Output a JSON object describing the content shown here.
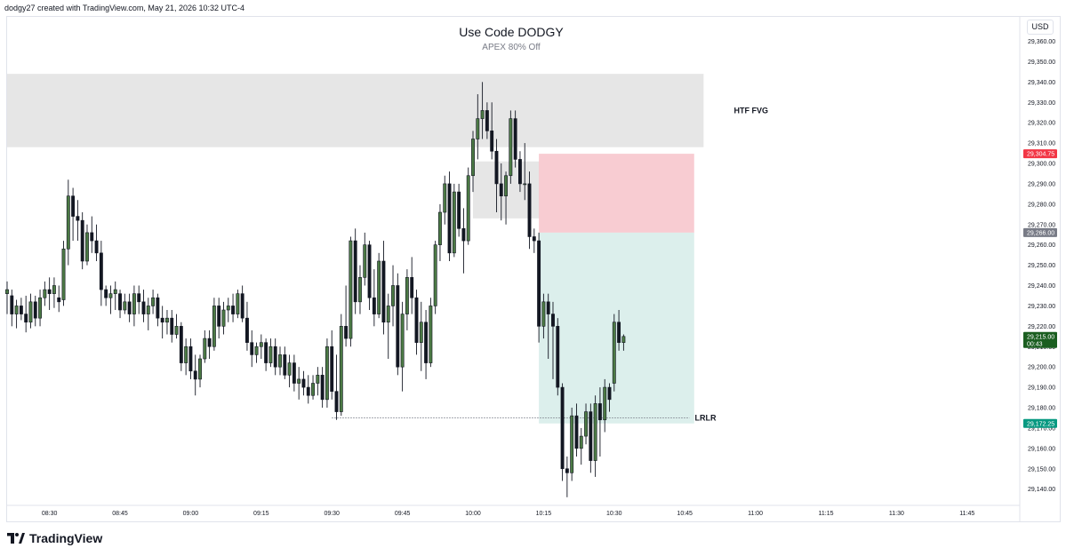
{
  "header": {
    "note": "dodgy27 created with TradingView.com, May 21, 2026 10:32 UTC-4"
  },
  "chart_data": {
    "type": "candlestick",
    "title": "Use Code DODGY",
    "subtitle": "APEX 80% Off",
    "currency": "USD",
    "y_range": [
      29132,
      29372
    ],
    "y_ticks": [
      29140,
      29150,
      29160,
      29170,
      29180,
      29190,
      29200,
      29210,
      29220,
      29230,
      29240,
      29250,
      29260,
      29270,
      29280,
      29290,
      29300,
      29310,
      29320,
      29330,
      29340,
      29350,
      29360
    ],
    "y_tick_labels": [
      "29,140.00",
      "29,150.00",
      "29,160.00",
      "29,170.00",
      "29,180.00",
      "29,190.00",
      "29,200.00",
      "29,210.00",
      "29,220.00",
      "29,230.00",
      "29,240.00",
      "29,250.00",
      "29,260.00",
      "29,270.00",
      "29,280.00",
      "29,290.00",
      "29,300.00",
      "29,310.00",
      "29,320.00",
      "29,330.00",
      "29,340.00",
      "29,350.00",
      "29,360.00"
    ],
    "x_ticks": [
      {
        "time": "08:30",
        "minute": 0
      },
      {
        "time": "08:45",
        "minute": 15
      },
      {
        "time": "09:00",
        "minute": 30
      },
      {
        "time": "09:15",
        "minute": 45
      },
      {
        "time": "09:30",
        "minute": 60
      },
      {
        "time": "09:45",
        "minute": 75
      },
      {
        "time": "10:00",
        "minute": 90
      },
      {
        "time": "10:15",
        "minute": 105
      },
      {
        "time": "10:30",
        "minute": 120
      },
      {
        "time": "10:45",
        "minute": 135
      },
      {
        "time": "11:00",
        "minute": 150
      },
      {
        "time": "11:15",
        "minute": 165
      },
      {
        "time": "11:30",
        "minute": 180
      },
      {
        "time": "11:45",
        "minute": 195
      }
    ],
    "x_range_minutes": [
      -9,
      206
    ],
    "candle_interval_minutes": 1,
    "candles": [
      {
        "t": -9,
        "o": 29236,
        "h": 29242,
        "l": 29226,
        "c": 29238
      },
      {
        "t": -8,
        "o": 29235,
        "h": 29238,
        "l": 29220,
        "c": 29226
      },
      {
        "t": -7,
        "o": 29226,
        "h": 29233,
        "l": 29219,
        "c": 29230
      },
      {
        "t": -6,
        "o": 29230,
        "h": 29234,
        "l": 29223,
        "c": 29226
      },
      {
        "t": -5,
        "o": 29226,
        "h": 29235,
        "l": 29217,
        "c": 29222
      },
      {
        "t": -4,
        "o": 29222,
        "h": 29236,
        "l": 29219,
        "c": 29232
      },
      {
        "t": -3,
        "o": 29232,
        "h": 29235,
        "l": 29220,
        "c": 29224
      },
      {
        "t": -2,
        "o": 29224,
        "h": 29238,
        "l": 29220,
        "c": 29234
      },
      {
        "t": -1,
        "o": 29234,
        "h": 29242,
        "l": 29230,
        "c": 29238
      },
      {
        "t": 0,
        "o": 29238,
        "h": 29244,
        "l": 29228,
        "c": 29236
      },
      {
        "t": 1,
        "o": 29236,
        "h": 29244,
        "l": 29229,
        "c": 29240
      },
      {
        "t": 2,
        "o": 29234,
        "h": 29240,
        "l": 29227,
        "c": 29232
      },
      {
        "t": 3,
        "o": 29233,
        "h": 29262,
        "l": 29230,
        "c": 29258
      },
      {
        "t": 4,
        "o": 29258,
        "h": 29292,
        "l": 29250,
        "c": 29284
      },
      {
        "t": 5,
        "o": 29284,
        "h": 29288,
        "l": 29262,
        "c": 29274
      },
      {
        "t": 6,
        "o": 29274,
        "h": 29282,
        "l": 29262,
        "c": 29272
      },
      {
        "t": 7,
        "o": 29272,
        "h": 29276,
        "l": 29248,
        "c": 29252
      },
      {
        "t": 8,
        "o": 29252,
        "h": 29270,
        "l": 29250,
        "c": 29266
      },
      {
        "t": 9,
        "o": 29266,
        "h": 29274,
        "l": 29256,
        "c": 29262
      },
      {
        "t": 10,
        "o": 29262,
        "h": 29270,
        "l": 29252,
        "c": 29256
      },
      {
        "t": 11,
        "o": 29256,
        "h": 29262,
        "l": 29230,
        "c": 29238
      },
      {
        "t": 12,
        "o": 29238,
        "h": 29240,
        "l": 29230,
        "c": 29234
      },
      {
        "t": 13,
        "o": 29234,
        "h": 29240,
        "l": 29226,
        "c": 29236
      },
      {
        "t": 14,
        "o": 29236,
        "h": 29242,
        "l": 29228,
        "c": 29238
      },
      {
        "t": 15,
        "o": 29236,
        "h": 29238,
        "l": 29224,
        "c": 29228
      },
      {
        "t": 16,
        "o": 29228,
        "h": 29236,
        "l": 29226,
        "c": 29232
      },
      {
        "t": 17,
        "o": 29232,
        "h": 29236,
        "l": 29222,
        "c": 29226
      },
      {
        "t": 18,
        "o": 29226,
        "h": 29240,
        "l": 29220,
        "c": 29236
      },
      {
        "t": 19,
        "o": 29236,
        "h": 29240,
        "l": 29226,
        "c": 29232
      },
      {
        "t": 20,
        "o": 29232,
        "h": 29238,
        "l": 29222,
        "c": 29226
      },
      {
        "t": 21,
        "o": 29226,
        "h": 29234,
        "l": 29218,
        "c": 29230
      },
      {
        "t": 22,
        "o": 29230,
        "h": 29238,
        "l": 29226,
        "c": 29234
      },
      {
        "t": 23,
        "o": 29234,
        "h": 29236,
        "l": 29220,
        "c": 29224
      },
      {
        "t": 24,
        "o": 29224,
        "h": 29230,
        "l": 29214,
        "c": 29222
      },
      {
        "t": 25,
        "o": 29222,
        "h": 29228,
        "l": 29216,
        "c": 29224
      },
      {
        "t": 26,
        "o": 29224,
        "h": 29228,
        "l": 29212,
        "c": 29216
      },
      {
        "t": 27,
        "o": 29216,
        "h": 29226,
        "l": 29214,
        "c": 29220
      },
      {
        "t": 28,
        "o": 29220,
        "h": 29222,
        "l": 29198,
        "c": 29202
      },
      {
        "t": 29,
        "o": 29202,
        "h": 29214,
        "l": 29196,
        "c": 29210
      },
      {
        "t": 30,
        "o": 29210,
        "h": 29214,
        "l": 29194,
        "c": 29198
      },
      {
        "t": 31,
        "o": 29198,
        "h": 29206,
        "l": 29186,
        "c": 29194
      },
      {
        "t": 32,
        "o": 29194,
        "h": 29206,
        "l": 29190,
        "c": 29204
      },
      {
        "t": 33,
        "o": 29204,
        "h": 29218,
        "l": 29202,
        "c": 29214
      },
      {
        "t": 34,
        "o": 29214,
        "h": 29218,
        "l": 29204,
        "c": 29210
      },
      {
        "t": 35,
        "o": 29210,
        "h": 29234,
        "l": 29208,
        "c": 29230
      },
      {
        "t": 36,
        "o": 29230,
        "h": 29234,
        "l": 29214,
        "c": 29220
      },
      {
        "t": 37,
        "o": 29220,
        "h": 29232,
        "l": 29216,
        "c": 29228
      },
      {
        "t": 38,
        "o": 29228,
        "h": 29234,
        "l": 29222,
        "c": 29230
      },
      {
        "t": 39,
        "o": 29230,
        "h": 29236,
        "l": 29222,
        "c": 29226
      },
      {
        "t": 40,
        "o": 29226,
        "h": 29238,
        "l": 29224,
        "c": 29236
      },
      {
        "t": 41,
        "o": 29236,
        "h": 29240,
        "l": 29222,
        "c": 29224
      },
      {
        "t": 42,
        "o": 29224,
        "h": 29232,
        "l": 29208,
        "c": 29212
      },
      {
        "t": 43,
        "o": 29212,
        "h": 29218,
        "l": 29200,
        "c": 29206
      },
      {
        "t": 44,
        "o": 29206,
        "h": 29212,
        "l": 29202,
        "c": 29210
      },
      {
        "t": 45,
        "o": 29210,
        "h": 29216,
        "l": 29204,
        "c": 29212
      },
      {
        "t": 46,
        "o": 29212,
        "h": 29214,
        "l": 29198,
        "c": 29202
      },
      {
        "t": 47,
        "o": 29202,
        "h": 29214,
        "l": 29200,
        "c": 29210
      },
      {
        "t": 48,
        "o": 29210,
        "h": 29214,
        "l": 29196,
        "c": 29200
      },
      {
        "t": 49,
        "o": 29200,
        "h": 29210,
        "l": 29196,
        "c": 29206
      },
      {
        "t": 50,
        "o": 29206,
        "h": 29210,
        "l": 29194,
        "c": 29196
      },
      {
        "t": 51,
        "o": 29196,
        "h": 29206,
        "l": 29190,
        "c": 29202
      },
      {
        "t": 52,
        "o": 29202,
        "h": 29206,
        "l": 29188,
        "c": 29192
      },
      {
        "t": 53,
        "o": 29192,
        "h": 29200,
        "l": 29184,
        "c": 29194
      },
      {
        "t": 54,
        "o": 29194,
        "h": 29198,
        "l": 29186,
        "c": 29190
      },
      {
        "t": 55,
        "o": 29190,
        "h": 29196,
        "l": 29182,
        "c": 29186
      },
      {
        "t": 56,
        "o": 29186,
        "h": 29196,
        "l": 29184,
        "c": 29192
      },
      {
        "t": 57,
        "o": 29192,
        "h": 29200,
        "l": 29186,
        "c": 29196
      },
      {
        "t": 58,
        "o": 29196,
        "h": 29200,
        "l": 29180,
        "c": 29184
      },
      {
        "t": 59,
        "o": 29184,
        "h": 29214,
        "l": 29180,
        "c": 29210
      },
      {
        "t": 60,
        "o": 29210,
        "h": 29218,
        "l": 29184,
        "c": 29188
      },
      {
        "t": 61,
        "o": 29188,
        "h": 29206,
        "l": 29174,
        "c": 29178
      },
      {
        "t": 62,
        "o": 29178,
        "h": 29226,
        "l": 29176,
        "c": 29220
      },
      {
        "t": 63,
        "o": 29220,
        "h": 29240,
        "l": 29210,
        "c": 29214
      },
      {
        "t": 64,
        "o": 29214,
        "h": 29264,
        "l": 29210,
        "c": 29262
      },
      {
        "t": 65,
        "o": 29262,
        "h": 29268,
        "l": 29226,
        "c": 29232
      },
      {
        "t": 66,
        "o": 29232,
        "h": 29250,
        "l": 29226,
        "c": 29244
      },
      {
        "t": 67,
        "o": 29244,
        "h": 29266,
        "l": 29240,
        "c": 29260
      },
      {
        "t": 68,
        "o": 29260,
        "h": 29262,
        "l": 29228,
        "c": 29234
      },
      {
        "t": 69,
        "o": 29234,
        "h": 29248,
        "l": 29220,
        "c": 29226
      },
      {
        "t": 70,
        "o": 29226,
        "h": 29256,
        "l": 29224,
        "c": 29252
      },
      {
        "t": 71,
        "o": 29252,
        "h": 29262,
        "l": 29216,
        "c": 29222
      },
      {
        "t": 72,
        "o": 29222,
        "h": 29236,
        "l": 29204,
        "c": 29230
      },
      {
        "t": 73,
        "o": 29230,
        "h": 29250,
        "l": 29220,
        "c": 29240
      },
      {
        "t": 74,
        "o": 29240,
        "h": 29246,
        "l": 29196,
        "c": 29200
      },
      {
        "t": 75,
        "o": 29200,
        "h": 29232,
        "l": 29188,
        "c": 29226
      },
      {
        "t": 76,
        "o": 29226,
        "h": 29248,
        "l": 29218,
        "c": 29244
      },
      {
        "t": 77,
        "o": 29244,
        "h": 29254,
        "l": 29226,
        "c": 29234
      },
      {
        "t": 78,
        "o": 29234,
        "h": 29238,
        "l": 29206,
        "c": 29212
      },
      {
        "t": 79,
        "o": 29212,
        "h": 29232,
        "l": 29198,
        "c": 29222
      },
      {
        "t": 80,
        "o": 29222,
        "h": 29228,
        "l": 29194,
        "c": 29202
      },
      {
        "t": 81,
        "o": 29202,
        "h": 29234,
        "l": 29200,
        "c": 29230
      },
      {
        "t": 82,
        "o": 29230,
        "h": 29262,
        "l": 29226,
        "c": 29260
      },
      {
        "t": 83,
        "o": 29260,
        "h": 29280,
        "l": 29252,
        "c": 29276
      },
      {
        "t": 84,
        "o": 29276,
        "h": 29294,
        "l": 29270,
        "c": 29290
      },
      {
        "t": 85,
        "o": 29290,
        "h": 29296,
        "l": 29252,
        "c": 29256
      },
      {
        "t": 86,
        "o": 29256,
        "h": 29290,
        "l": 29254,
        "c": 29286
      },
      {
        "t": 87,
        "o": 29286,
        "h": 29290,
        "l": 29264,
        "c": 29268
      },
      {
        "t": 88,
        "o": 29268,
        "h": 29278,
        "l": 29246,
        "c": 29262
      },
      {
        "t": 89,
        "o": 29262,
        "h": 29298,
        "l": 29260,
        "c": 29294
      },
      {
        "t": 90,
        "o": 29294,
        "h": 29316,
        "l": 29286,
        "c": 29312
      },
      {
        "t": 91,
        "o": 29312,
        "h": 29334,
        "l": 29302,
        "c": 29322
      },
      {
        "t": 92,
        "o": 29322,
        "h": 29340,
        "l": 29312,
        "c": 29326
      },
      {
        "t": 93,
        "o": 29326,
        "h": 29330,
        "l": 29312,
        "c": 29316
      },
      {
        "t": 94,
        "o": 29316,
        "h": 29330,
        "l": 29302,
        "c": 29306
      },
      {
        "t": 95,
        "o": 29306,
        "h": 29312,
        "l": 29276,
        "c": 29290
      },
      {
        "t": 96,
        "o": 29290,
        "h": 29300,
        "l": 29272,
        "c": 29284
      },
      {
        "t": 97,
        "o": 29284,
        "h": 29296,
        "l": 29270,
        "c": 29294
      },
      {
        "t": 98,
        "o": 29294,
        "h": 29326,
        "l": 29290,
        "c": 29322
      },
      {
        "t": 99,
        "o": 29322,
        "h": 29326,
        "l": 29298,
        "c": 29302
      },
      {
        "t": 100,
        "o": 29302,
        "h": 29306,
        "l": 29286,
        "c": 29290
      },
      {
        "t": 101,
        "o": 29290,
        "h": 29310,
        "l": 29282,
        "c": 29290
      },
      {
        "t": 102,
        "o": 29290,
        "h": 29296,
        "l": 29258,
        "c": 29264
      },
      {
        "t": 103,
        "o": 29264,
        "h": 29268,
        "l": 29256,
        "c": 29262
      },
      {
        "t": 104,
        "o": 29262,
        "h": 29266,
        "l": 29212,
        "c": 29220
      },
      {
        "t": 105,
        "o": 29220,
        "h": 29236,
        "l": 29214,
        "c": 29232
      },
      {
        "t": 106,
        "o": 29232,
        "h": 29236,
        "l": 29204,
        "c": 29226
      },
      {
        "t": 107,
        "o": 29226,
        "h": 29232,
        "l": 29194,
        "c": 29220
      },
      {
        "t": 108,
        "o": 29220,
        "h": 29224,
        "l": 29186,
        "c": 29190
      },
      {
        "t": 109,
        "o": 29190,
        "h": 29192,
        "l": 29144,
        "c": 29150
      },
      {
        "t": 110,
        "o": 29150,
        "h": 29156,
        "l": 29136,
        "c": 29148
      },
      {
        "t": 111,
        "o": 29148,
        "h": 29180,
        "l": 29144,
        "c": 29176
      },
      {
        "t": 112,
        "o": 29176,
        "h": 29182,
        "l": 29156,
        "c": 29160
      },
      {
        "t": 113,
        "o": 29160,
        "h": 29170,
        "l": 29152,
        "c": 29166
      },
      {
        "t": 114,
        "o": 29166,
        "h": 29182,
        "l": 29162,
        "c": 29178
      },
      {
        "t": 115,
        "o": 29178,
        "h": 29182,
        "l": 29148,
        "c": 29154
      },
      {
        "t": 116,
        "o": 29154,
        "h": 29186,
        "l": 29146,
        "c": 29182
      },
      {
        "t": 117,
        "o": 29182,
        "h": 29190,
        "l": 29156,
        "c": 29174
      },
      {
        "t": 118,
        "o": 29174,
        "h": 29194,
        "l": 29168,
        "c": 29190
      },
      {
        "t": 119,
        "o": 29190,
        "h": 29192,
        "l": 29178,
        "c": 29184
      },
      {
        "t": 120,
        "o": 29192,
        "h": 29226,
        "l": 29188,
        "c": 29222
      },
      {
        "t": 121,
        "o": 29222,
        "h": 29228,
        "l": 29208,
        "c": 29212
      },
      {
        "t": 122,
        "o": 29212,
        "h": 29216,
        "l": 29208,
        "c": 29215
      }
    ],
    "zones": [
      {
        "label": "HTF FVG",
        "t_start": -9,
        "t_end": 139,
        "y_top": 29344,
        "y_bottom": 29308,
        "color": "#e6e6e6"
      },
      {
        "label": "",
        "t_start": 90,
        "t_end": 104,
        "y_top": 29301,
        "y_bottom": 29273,
        "color": "#e6e6e6"
      },
      {
        "label": "FVG",
        "t_start": 104,
        "t_end": 128,
        "y_top": 29301,
        "y_bottom": 29273,
        "color": "#d9c3c6"
      },
      {
        "label": "",
        "t_start": 104,
        "t_end": 137,
        "y_top": 29304.75,
        "y_bottom": 29266,
        "color": "#f8ccd2"
      },
      {
        "label": "",
        "t_start": 104,
        "t_end": 137,
        "y_top": 29266,
        "y_bottom": 29172.25,
        "color": "#dcefec"
      }
    ],
    "level_lines": [
      {
        "label": "LRLR",
        "t_start": 60,
        "t_end": 136,
        "y": 29175,
        "style": "dotted"
      }
    ],
    "price_tags": [
      {
        "label": "29,304.75",
        "value": 29304.75,
        "color": "#f23645"
      },
      {
        "label": "29,266.00",
        "value": 29266.0,
        "color": "#787b86"
      },
      {
        "label": "29,215.00",
        "sublabel": "00:43",
        "value": 29215.0,
        "color": "#1b5e20"
      },
      {
        "label": "29,172.25",
        "value": 29172.25,
        "color": "#089981"
      }
    ]
  },
  "footer": {
    "brand": "TradingView"
  }
}
